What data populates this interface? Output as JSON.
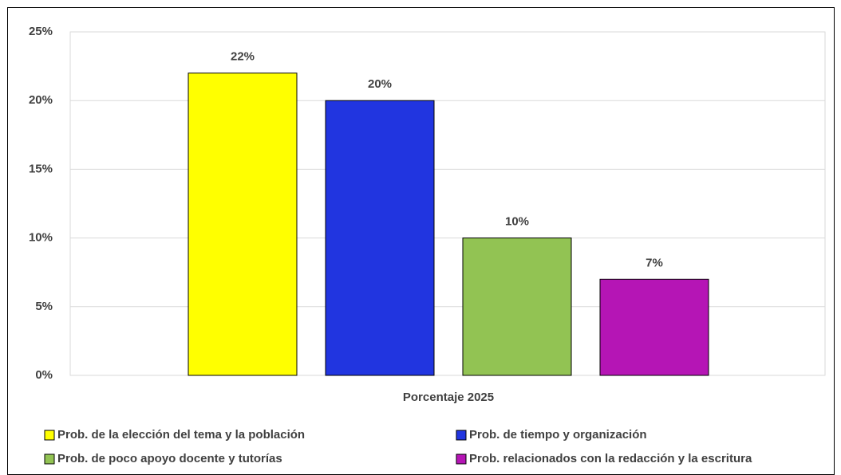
{
  "chart_data": {
    "type": "bar",
    "categories": [
      "Porcentaje 2025"
    ],
    "series": [
      {
        "name": "Prob. de la elección del tema y la población",
        "color": "#ffff00",
        "values": [
          22
        ],
        "value_labels": [
          "22%"
        ]
      },
      {
        "name": "Prob. de tiempo y organización",
        "color": "#2135e0",
        "values": [
          20
        ],
        "value_labels": [
          "20%"
        ]
      },
      {
        "name": "Prob. de poco apoyo docente y tutorías",
        "color": "#92c353",
        "values": [
          10
        ],
        "value_labels": [
          "10%"
        ]
      },
      {
        "name": "Prob. relacionados con la redacción y la escritura",
        "color": "#b515b5",
        "values": [
          7
        ],
        "value_labels": [
          "7%"
        ]
      }
    ],
    "ylim": [
      0,
      25
    ],
    "yticks": [
      {
        "value": 0,
        "label": "0%"
      },
      {
        "value": 5,
        "label": "5%"
      },
      {
        "value": 10,
        "label": "10%"
      },
      {
        "value": 15,
        "label": "15%"
      },
      {
        "value": 20,
        "label": "20%"
      },
      {
        "value": 25,
        "label": "25%"
      }
    ],
    "grid": true,
    "legend": "bottom"
  }
}
